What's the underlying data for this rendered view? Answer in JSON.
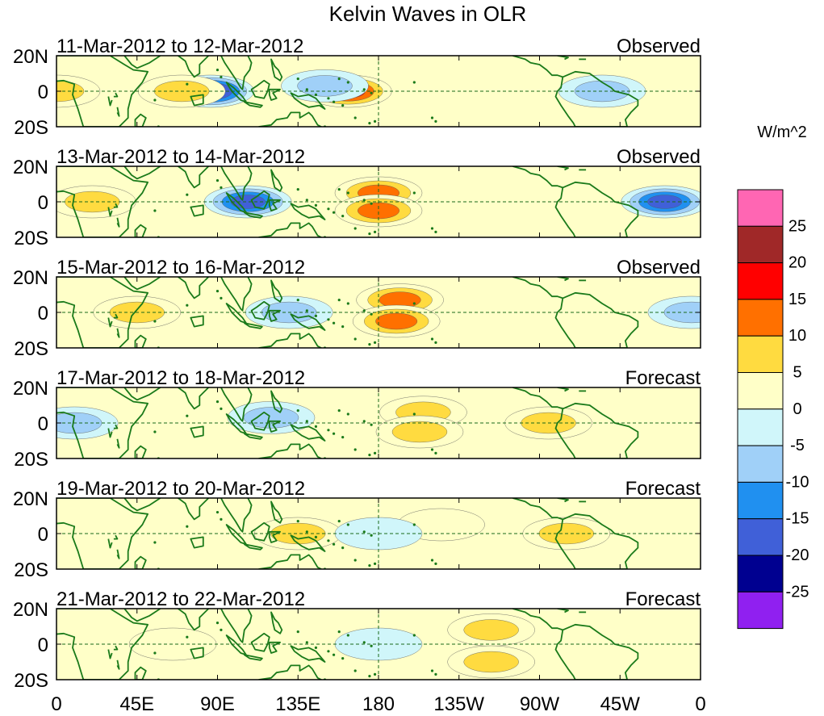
{
  "chart_data": {
    "type": "heatmap",
    "title": "Kelvin Waves in OLR",
    "units": "W/m^2",
    "x_ticks": [
      "0",
      "45E",
      "90E",
      "135E",
      "180",
      "135W",
      "90W",
      "45W",
      "0"
    ],
    "y_ticks": [
      "20N",
      "0",
      "20S"
    ],
    "xlim_degE": [
      0,
      360
    ],
    "ylim_deg": [
      -20,
      20
    ],
    "panels": [
      {
        "date_range": "11-Mar-2012 to 12-Mar-2012",
        "status": "Observed",
        "anomalies": [
          {
            "lon": 163,
            "lat": 0,
            "value": 20
          },
          {
            "lon": 86,
            "lat": 0,
            "value": -25
          },
          {
            "lon": 150,
            "lat": 3,
            "value": -10
          },
          {
            "lon": 70,
            "lat": 0,
            "value": 10
          },
          {
            "lon": 0,
            "lat": 0,
            "value": 10
          },
          {
            "lon": 305,
            "lat": 0,
            "value": -10
          }
        ]
      },
      {
        "date_range": "13-Mar-2012 to 14-Mar-2012",
        "status": "Observed",
        "anomalies": [
          {
            "lon": 180,
            "lat": 5,
            "value": 15
          },
          {
            "lon": 180,
            "lat": -5,
            "value": 15
          },
          {
            "lon": 107,
            "lat": 0,
            "value": -20
          },
          {
            "lon": 20,
            "lat": 0,
            "value": 10
          },
          {
            "lon": 340,
            "lat": 0,
            "value": -20
          }
        ]
      },
      {
        "date_range": "15-Mar-2012 to 16-Mar-2012",
        "status": "Observed",
        "anomalies": [
          {
            "lon": 192,
            "lat": 7,
            "value": 15
          },
          {
            "lon": 190,
            "lat": -5,
            "value": 15
          },
          {
            "lon": 45,
            "lat": 0,
            "value": 10
          },
          {
            "lon": 130,
            "lat": 0,
            "value": -10
          },
          {
            "lon": 355,
            "lat": 0,
            "value": -10
          }
        ]
      },
      {
        "date_range": "17-Mar-2012 to 18-Mar-2012",
        "status": "Forecast",
        "anomalies": [
          {
            "lon": 205,
            "lat": 6,
            "value": 10
          },
          {
            "lon": 203,
            "lat": -5,
            "value": 10
          },
          {
            "lon": 275,
            "lat": 0,
            "value": 10
          },
          {
            "lon": 120,
            "lat": 3,
            "value": -10
          },
          {
            "lon": 10,
            "lat": 0,
            "value": -10
          }
        ]
      },
      {
        "date_range": "19-Mar-2012 to 20-Mar-2012",
        "status": "Forecast",
        "anomalies": [
          {
            "lon": 135,
            "lat": 0,
            "value": 10
          },
          {
            "lon": 285,
            "lat": 0,
            "value": 10
          },
          {
            "lon": 215,
            "lat": 5,
            "value": 5
          },
          {
            "lon": 180,
            "lat": 0,
            "value": -5
          }
        ]
      },
      {
        "date_range": "21-Mar-2012 to 22-Mar-2012",
        "status": "Forecast",
        "anomalies": [
          {
            "lon": 243,
            "lat": 8,
            "value": 10
          },
          {
            "lon": 243,
            "lat": -10,
            "value": 10
          },
          {
            "lon": 180,
            "lat": 0,
            "value": -5
          },
          {
            "lon": 65,
            "lat": 0,
            "value": 5
          }
        ]
      }
    ],
    "colorbar": {
      "labels": [
        "25",
        "20",
        "15",
        "10",
        "5",
        "0",
        "-5",
        "-10",
        "-15",
        "-20",
        "-25"
      ],
      "colors_top_to_bottom": [
        "#ff66b3",
        "#a02828",
        "#ff0000",
        "#ff7000",
        "#ffdb40",
        "#ffffc8",
        "#d0f6fa",
        "#a0d0f8",
        "#2090f0",
        "#4060d8",
        "#000090",
        "#9020f0"
      ]
    }
  },
  "colors": {
    "coast": "#1a7a1a",
    "grid": "#1a6a1a"
  }
}
